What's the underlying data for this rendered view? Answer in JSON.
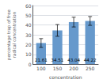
{
  "chart_data": {
    "type": "bar",
    "categories": [
      "100",
      "150",
      "200",
      "250"
    ],
    "values": [
      21.61,
      34.51,
      43.04,
      44.22
    ],
    "errors": [
      4.5,
      6.0,
      5.0,
      4.5
    ],
    "color": "#6699CC",
    "xlabel": "concentration",
    "ylabel": "percentage trap of free\nradical concentration",
    "ylim": [
      0,
      60
    ],
    "yticks": [
      0,
      10,
      20,
      30,
      40,
      50,
      60
    ],
    "grid": true,
    "data_labels": true
  }
}
